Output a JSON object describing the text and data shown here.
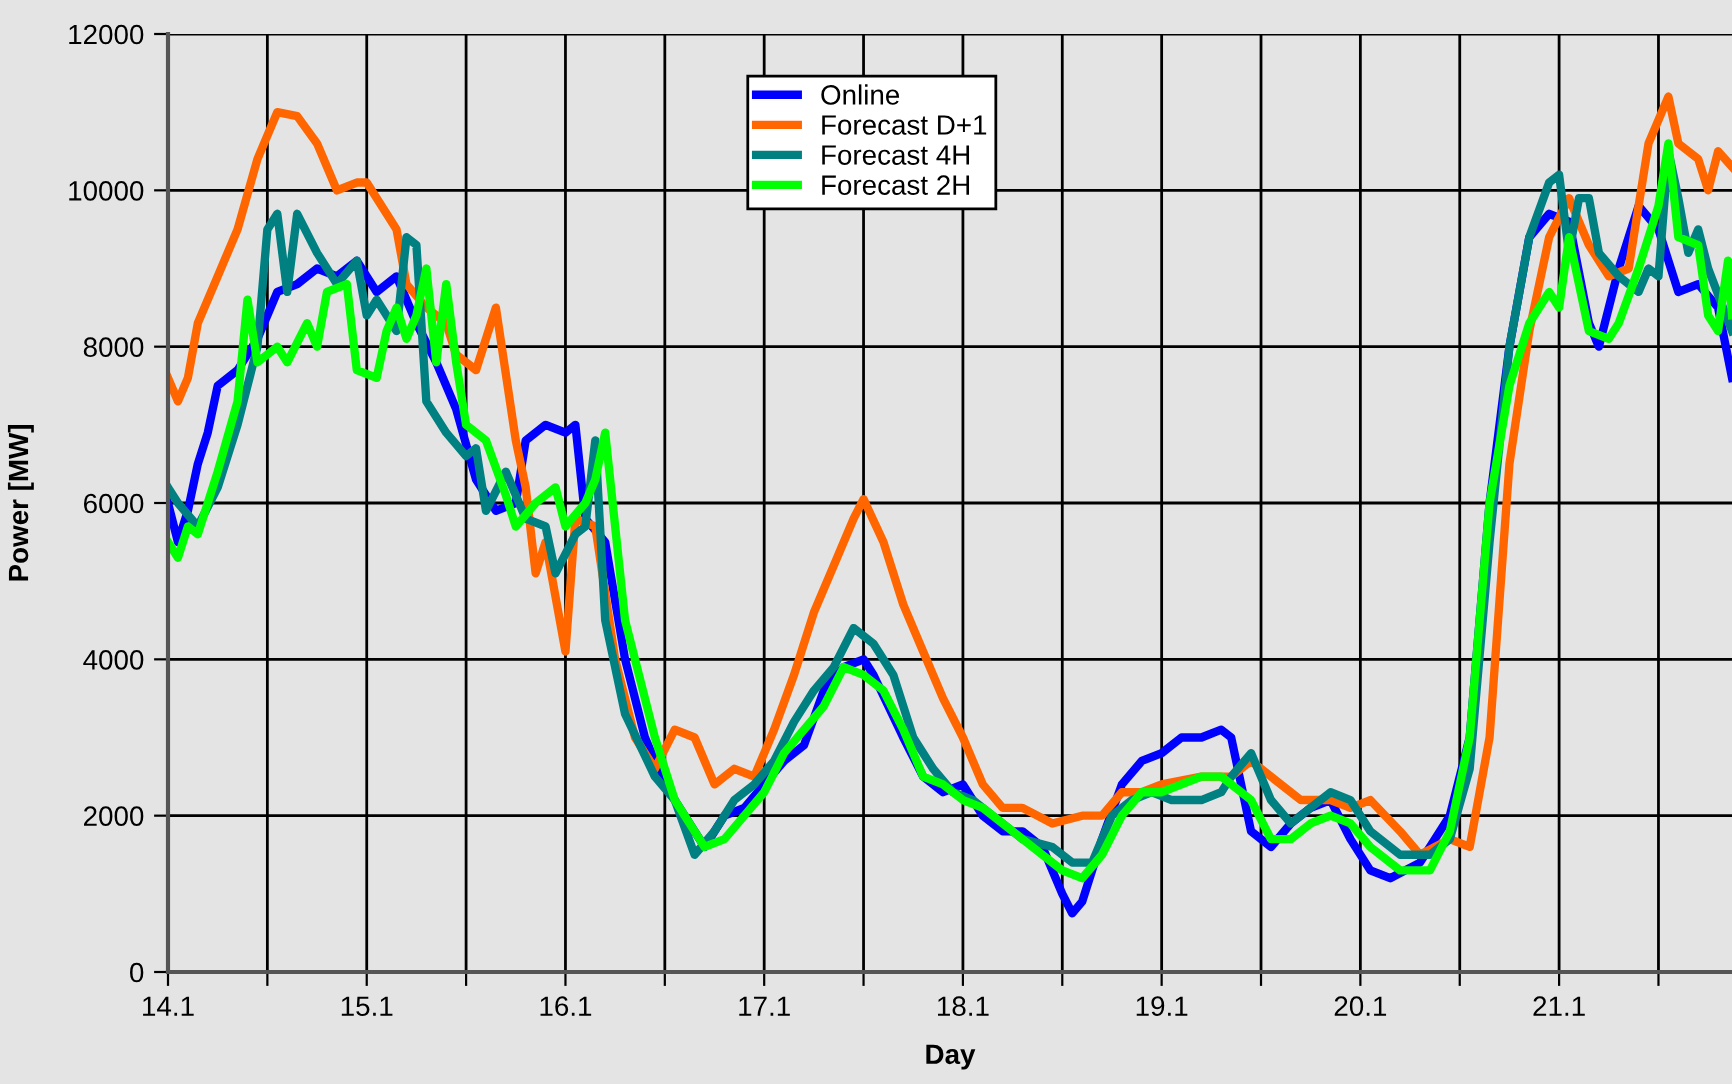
{
  "chart_data": {
    "type": "line",
    "xlabel": "Day",
    "ylabel": "Power [MW]",
    "xlim": [
      14.1,
      21.97
    ],
    "ylim": [
      0,
      12000
    ],
    "xticks": [
      14.1,
      {
        "value": 14.6,
        "label": null
      },
      15.1,
      {
        "value": 15.6,
        "label": null
      },
      16.1,
      {
        "value": 16.6,
        "label": null
      },
      17.1,
      {
        "value": 17.6,
        "label": null
      },
      18.1,
      {
        "value": 18.6,
        "label": null
      },
      19.1,
      {
        "value": 19.6,
        "label": null
      },
      20.1,
      {
        "value": 20.6,
        "label": null
      },
      21.1,
      {
        "value": 21.6,
        "label": null
      }
    ],
    "yticks": [
      0,
      2000,
      4000,
      6000,
      8000,
      10000,
      12000
    ],
    "grid": true,
    "legend": "top",
    "marker": "none",
    "line_style": "solid",
    "series": [
      {
        "name": "Online",
        "color": "#0000ff",
        "x": [
          14.1,
          14.15,
          14.2,
          14.25,
          14.3,
          14.35,
          14.45,
          14.55,
          14.65,
          14.75,
          14.85,
          14.95,
          15.05,
          15.15,
          15.25,
          15.35,
          15.45,
          15.55,
          15.65,
          15.75,
          15.85,
          15.9,
          16.0,
          16.1,
          16.15,
          16.2,
          16.3,
          16.4,
          16.5,
          16.6,
          16.7,
          16.8,
          16.9,
          17.0,
          17.1,
          17.2,
          17.3,
          17.4,
          17.5,
          17.6,
          17.65,
          17.8,
          17.9,
          18.0,
          18.1,
          18.2,
          18.3,
          18.4,
          18.5,
          18.6,
          18.65,
          18.7,
          18.8,
          18.9,
          19.0,
          19.1,
          19.2,
          19.3,
          19.4,
          19.45,
          19.55,
          19.65,
          19.75,
          19.85,
          19.95,
          20.05,
          20.15,
          20.25,
          20.4,
          20.55,
          20.65,
          20.75,
          20.85,
          20.95,
          21.05,
          21.15,
          21.25,
          21.3,
          21.4,
          21.5,
          21.6,
          21.7,
          21.8,
          21.9,
          21.97
        ],
        "values": [
          6000,
          5500,
          5900,
          6500,
          6900,
          7500,
          7700,
          8100,
          8700,
          8800,
          9000,
          8900,
          9100,
          8700,
          8900,
          8300,
          7800,
          7200,
          6300,
          5900,
          6000,
          6800,
          7000,
          6900,
          7000,
          5800,
          5500,
          4000,
          3000,
          2400,
          2000,
          1600,
          2000,
          2100,
          2400,
          2700,
          2900,
          3600,
          3900,
          4000,
          3800,
          3000,
          2500,
          2300,
          2400,
          2000,
          1800,
          1800,
          1600,
          1000,
          750,
          900,
          1700,
          2400,
          2700,
          2800,
          3000,
          3000,
          3100,
          3000,
          1800,
          1600,
          1900,
          2100,
          2200,
          1700,
          1300,
          1200,
          1400,
          2000,
          3000,
          6000,
          8000,
          9400,
          9700,
          9600,
          8300,
          8000,
          9000,
          9800,
          9500,
          8700,
          8800,
          8500,
          7600
        ]
      },
      {
        "name": "Forecast D+1",
        "color": "#ff6600",
        "x": [
          14.1,
          14.15,
          14.2,
          14.25,
          14.35,
          14.45,
          14.55,
          14.65,
          14.75,
          14.85,
          14.95,
          15.05,
          15.1,
          15.2,
          15.25,
          15.3,
          15.4,
          15.5,
          15.55,
          15.65,
          15.75,
          15.85,
          15.9,
          15.95,
          16.0,
          16.05,
          16.1,
          16.15,
          16.25,
          16.35,
          16.45,
          16.55,
          16.65,
          16.75,
          16.85,
          16.95,
          17.05,
          17.15,
          17.25,
          17.35,
          17.45,
          17.55,
          17.6,
          17.7,
          17.8,
          17.9,
          18.0,
          18.1,
          18.2,
          18.3,
          18.4,
          18.55,
          18.7,
          18.8,
          18.9,
          19.0,
          19.1,
          19.3,
          19.45,
          19.55,
          19.65,
          19.8,
          19.95,
          20.05,
          20.15,
          20.3,
          20.4,
          20.55,
          20.65,
          20.75,
          20.85,
          20.95,
          21.05,
          21.15,
          21.25,
          21.35,
          21.45,
          21.55,
          21.65,
          21.7,
          21.8,
          21.85,
          21.9,
          21.97
        ],
        "values": [
          7600,
          7300,
          7600,
          8300,
          8900,
          9500,
          10400,
          11000,
          10950,
          10600,
          10000,
          10100,
          10100,
          9700,
          9500,
          8800,
          8500,
          8300,
          7900,
          7700,
          8500,
          6800,
          6200,
          5100,
          5500,
          4800,
          4100,
          5800,
          5700,
          4000,
          3000,
          2600,
          3100,
          3000,
          2400,
          2600,
          2500,
          3100,
          3800,
          4600,
          5200,
          5800,
          6050,
          5500,
          4700,
          4100,
          3500,
          3000,
          2400,
          2100,
          2100,
          1900,
          2000,
          2000,
          2300,
          2300,
          2400,
          2500,
          2500,
          2700,
          2500,
          2200,
          2200,
          2100,
          2200,
          1800,
          1500,
          1700,
          1600,
          3000,
          6500,
          8200,
          9400,
          9900,
          9300,
          8900,
          9000,
          10600,
          11200,
          10600,
          10400,
          10000,
          10500,
          10300
        ]
      },
      {
        "name": "Forecast 4H",
        "color": "#008080",
        "x": [
          14.1,
          14.15,
          14.25,
          14.35,
          14.45,
          14.55,
          14.6,
          14.65,
          14.7,
          14.75,
          14.85,
          14.95,
          15.05,
          15.1,
          15.15,
          15.25,
          15.3,
          15.35,
          15.4,
          15.5,
          15.6,
          15.65,
          15.7,
          15.8,
          15.9,
          16.0,
          16.05,
          16.15,
          16.2,
          16.25,
          16.3,
          16.4,
          16.55,
          16.65,
          16.75,
          16.85,
          16.95,
          17.05,
          17.15,
          17.25,
          17.35,
          17.45,
          17.55,
          17.65,
          17.75,
          17.85,
          17.95,
          18.05,
          18.15,
          18.25,
          18.4,
          18.55,
          18.65,
          18.75,
          18.85,
          18.95,
          19.05,
          19.15,
          19.3,
          19.4,
          19.45,
          19.55,
          19.65,
          19.75,
          19.85,
          19.95,
          20.05,
          20.15,
          20.3,
          20.45,
          20.55,
          20.65,
          20.75,
          20.85,
          20.95,
          21.05,
          21.1,
          21.15,
          21.2,
          21.25,
          21.3,
          21.4,
          21.5,
          21.55,
          21.6,
          21.65,
          21.7,
          21.75,
          21.8,
          21.85,
          21.97
        ],
        "values": [
          6200,
          6000,
          5700,
          6200,
          7000,
          8000,
          9500,
          9700,
          8700,
          9700,
          9200,
          8800,
          9100,
          8400,
          8600,
          8200,
          9400,
          9300,
          7300,
          6900,
          6600,
          6700,
          5900,
          6400,
          5800,
          5700,
          5100,
          5600,
          5700,
          6800,
          4500,
          3300,
          2500,
          2200,
          1500,
          1800,
          2200,
          2400,
          2700,
          3200,
          3600,
          3900,
          4400,
          4200,
          3800,
          3000,
          2600,
          2300,
          2200,
          2000,
          1700,
          1600,
          1400,
          1400,
          2000,
          2200,
          2300,
          2200,
          2200,
          2300,
          2500,
          2800,
          2200,
          1900,
          2100,
          2300,
          2200,
          1800,
          1500,
          1500,
          1700,
          2600,
          5500,
          8000,
          9400,
          10100,
          10200,
          9200,
          9900,
          9900,
          9200,
          8900,
          8700,
          9000,
          8900,
          10500,
          9900,
          9200,
          9500,
          9000,
          8200
        ]
      },
      {
        "name": "Forecast 2H",
        "color": "#00ff00",
        "x": [
          14.1,
          14.15,
          14.2,
          14.25,
          14.35,
          14.45,
          14.5,
          14.55,
          14.65,
          14.7,
          14.8,
          14.85,
          14.9,
          15.0,
          15.05,
          15.15,
          15.2,
          15.25,
          15.3,
          15.35,
          15.4,
          15.45,
          15.5,
          15.55,
          15.6,
          15.7,
          15.8,
          15.85,
          15.95,
          16.05,
          16.1,
          16.2,
          16.25,
          16.3,
          16.4,
          16.55,
          16.65,
          16.8,
          16.9,
          17.0,
          17.1,
          17.2,
          17.3,
          17.4,
          17.5,
          17.6,
          17.7,
          17.8,
          17.9,
          18.0,
          18.1,
          18.2,
          18.35,
          18.45,
          18.6,
          18.7,
          18.8,
          18.9,
          19.0,
          19.1,
          19.2,
          19.3,
          19.4,
          19.55,
          19.65,
          19.75,
          19.85,
          19.95,
          20.05,
          20.15,
          20.3,
          20.45,
          20.55,
          20.65,
          20.75,
          20.85,
          20.95,
          21.05,
          21.1,
          21.15,
          21.25,
          21.35,
          21.4,
          21.5,
          21.6,
          21.65,
          21.7,
          21.8,
          21.85,
          21.9,
          21.95,
          21.97
        ],
        "values": [
          5500,
          5300,
          5700,
          5600,
          6400,
          7300,
          8600,
          7800,
          8000,
          7800,
          8300,
          8000,
          8700,
          8800,
          7700,
          7600,
          8200,
          8500,
          8100,
          8400,
          9000,
          7800,
          8800,
          7800,
          7000,
          6800,
          6100,
          5700,
          6000,
          6200,
          5700,
          6000,
          6300,
          6900,
          4500,
          3000,
          2200,
          1600,
          1700,
          2000,
          2300,
          2800,
          3100,
          3400,
          3900,
          3800,
          3600,
          3100,
          2500,
          2400,
          2200,
          2100,
          1800,
          1600,
          1300,
          1200,
          1500,
          2000,
          2300,
          2300,
          2400,
          2500,
          2500,
          2200,
          1700,
          1700,
          1900,
          2000,
          1900,
          1600,
          1300,
          1300,
          1800,
          3000,
          6000,
          7500,
          8300,
          8700,
          8500,
          9400,
          8200,
          8100,
          8300,
          9000,
          9800,
          10600,
          9400,
          9300,
          8400,
          8200,
          9100,
          8400
        ]
      }
    ]
  }
}
